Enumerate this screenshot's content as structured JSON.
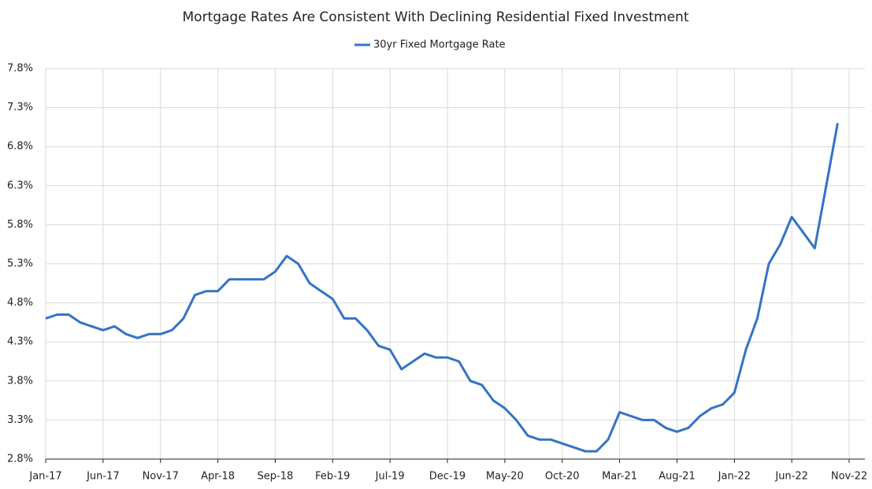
{
  "chart_data": {
    "type": "line",
    "title": "Mortgage Rates Are Consistent With Declining Residential Fixed Investment",
    "x": [
      "Jan-17",
      "Feb-17",
      "Mar-17",
      "Apr-17",
      "May-17",
      "Jun-17",
      "Jul-17",
      "Aug-17",
      "Sep-17",
      "Oct-17",
      "Nov-17",
      "Dec-17",
      "Jan-18",
      "Feb-18",
      "Mar-18",
      "Apr-18",
      "May-18",
      "Jun-18",
      "Jul-18",
      "Aug-18",
      "Sep-18",
      "Oct-18",
      "Nov-18",
      "Dec-18",
      "Jan-19",
      "Feb-19",
      "Mar-19",
      "Apr-19",
      "May-19",
      "Jun-19",
      "Jul-19",
      "Aug-19",
      "Sep-19",
      "Oct-19",
      "Nov-19",
      "Dec-19",
      "Jan-20",
      "Feb-20",
      "Mar-20",
      "Apr-20",
      "May-20",
      "Jun-20",
      "Jul-20",
      "Aug-20",
      "Sep-20",
      "Oct-20",
      "Nov-20",
      "Dec-20",
      "Jan-21",
      "Feb-21",
      "Mar-21",
      "Apr-21",
      "May-21",
      "Jun-21",
      "Jul-21",
      "Aug-21",
      "Sep-21",
      "Oct-21",
      "Nov-21",
      "Dec-21",
      "Jan-22",
      "Feb-22",
      "Mar-22",
      "Apr-22",
      "May-22",
      "Jun-22",
      "Jul-22",
      "Aug-22",
      "Sep-22",
      "Oct-22",
      "Nov-22"
    ],
    "series": [
      {
        "name": "30yr Fixed Mortgage Rate",
        "color": "#3473c4",
        "values": [
          4.6,
          4.65,
          4.65,
          4.55,
          4.5,
          4.45,
          4.5,
          4.4,
          4.35,
          4.4,
          4.4,
          4.45,
          4.6,
          4.9,
          4.95,
          4.95,
          5.1,
          5.1,
          5.1,
          5.1,
          5.2,
          5.4,
          5.3,
          5.05,
          4.95,
          4.85,
          4.6,
          4.6,
          4.45,
          4.25,
          4.2,
          3.95,
          4.05,
          4.15,
          4.1,
          4.1,
          4.05,
          3.8,
          3.75,
          3.55,
          3.45,
          3.3,
          3.1,
          3.05,
          3.05,
          3.0,
          2.95,
          2.9,
          2.9,
          3.05,
          3.4,
          3.35,
          3.3,
          3.3,
          3.2,
          3.15,
          3.2,
          3.35,
          3.45,
          3.5,
          3.65,
          4.2,
          4.6,
          5.3,
          5.55,
          5.9,
          5.7,
          5.5,
          6.3,
          7.1,
          null
        ]
      }
    ],
    "xticks": [
      "Jan-17",
      "Jun-17",
      "Nov-17",
      "Apr-18",
      "Sep-18",
      "Feb-19",
      "Jul-19",
      "Dec-19",
      "May-20",
      "Oct-20",
      "Mar-21",
      "Aug-21",
      "Jan-22",
      "Jun-22",
      "Nov-22"
    ],
    "ylim": [
      2.8,
      7.8
    ],
    "yticks": [
      {
        "value": 2.8,
        "label": "2.8%"
      },
      {
        "value": 3.3,
        "label": "3.3%"
      },
      {
        "value": 3.8,
        "label": "3.8%"
      },
      {
        "value": 4.3,
        "label": "4.3%"
      },
      {
        "value": 4.8,
        "label": "4.8%"
      },
      {
        "value": 5.3,
        "label": "5.3%"
      },
      {
        "value": 5.8,
        "label": "5.8%"
      },
      {
        "value": 6.3,
        "label": "6.3%"
      },
      {
        "value": 6.8,
        "label": "6.8%"
      },
      {
        "value": 7.3,
        "label": "7.3%"
      },
      {
        "value": 7.8,
        "label": "7.8%"
      }
    ],
    "grid": true,
    "legend": "top"
  }
}
